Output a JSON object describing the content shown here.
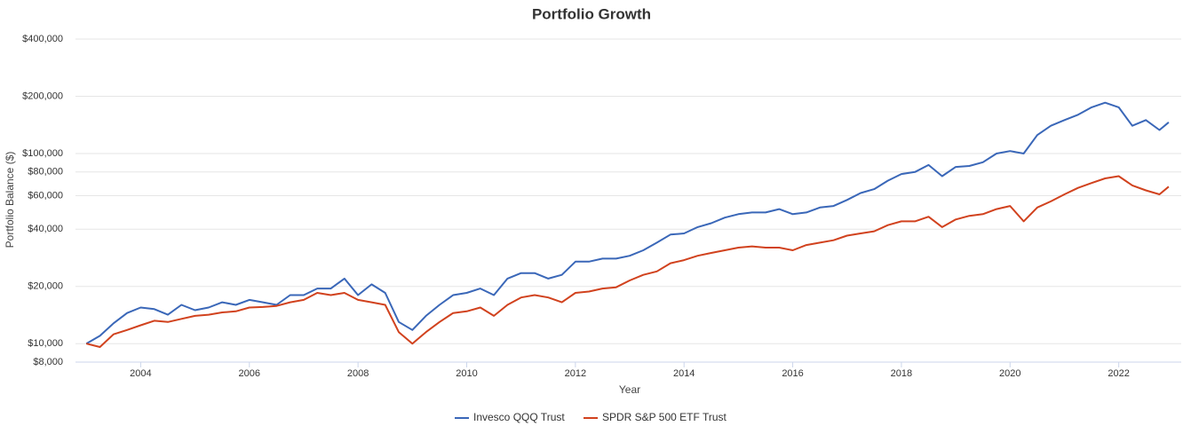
{
  "chart_data": {
    "type": "line",
    "title": "Portfolio Growth",
    "x_label": "Year",
    "y_label": "Portfolio Balance ($)",
    "log_scale": true,
    "grid": true,
    "legend": "bottom",
    "xlim": [
      2002.8,
      2023.15
    ],
    "xticks": [
      2004,
      2006,
      2008,
      2010,
      2012,
      2014,
      2016,
      2018,
      2020,
      2022
    ],
    "ylim": [
      8000,
      400000
    ],
    "yticks": [
      {
        "value": 8000,
        "label": "$8,000"
      },
      {
        "value": 10000,
        "label": "$10,000"
      },
      {
        "value": 20000,
        "label": "$20,000"
      },
      {
        "value": 40000,
        "label": "$40,000"
      },
      {
        "value": 60000,
        "label": "$60,000"
      },
      {
        "value": 80000,
        "label": "$80,000"
      },
      {
        "value": 100000,
        "label": "$100,000"
      },
      {
        "value": 200000,
        "label": "$200,000"
      },
      {
        "value": 400000,
        "label": "$400,000"
      }
    ],
    "x": [
      2003.0,
      2003.25,
      2003.5,
      2003.75,
      2004.0,
      2004.25,
      2004.5,
      2004.75,
      2005.0,
      2005.25,
      2005.5,
      2005.75,
      2006.0,
      2006.25,
      2006.5,
      2006.75,
      2007.0,
      2007.25,
      2007.5,
      2007.75,
      2008.0,
      2008.25,
      2008.5,
      2008.75,
      2009.0,
      2009.25,
      2009.5,
      2009.75,
      2010.0,
      2010.25,
      2010.5,
      2010.75,
      2011.0,
      2011.25,
      2011.5,
      2011.75,
      2012.0,
      2012.25,
      2012.5,
      2012.75,
      2013.0,
      2013.25,
      2013.5,
      2013.75,
      2014.0,
      2014.25,
      2014.5,
      2014.75,
      2015.0,
      2015.25,
      2015.5,
      2015.75,
      2016.0,
      2016.25,
      2016.5,
      2016.75,
      2017.0,
      2017.25,
      2017.5,
      2017.75,
      2018.0,
      2018.25,
      2018.5,
      2018.75,
      2019.0,
      2019.25,
      2019.5,
      2019.75,
      2020.0,
      2020.25,
      2020.5,
      2020.75,
      2021.0,
      2021.25,
      2021.5,
      2021.75,
      2022.0,
      2022.25,
      2022.5,
      2022.75,
      2022.92
    ],
    "series": [
      {
        "name": "Invesco QQQ Trust",
        "color": "#3a67b8",
        "values": [
          10000,
          11000,
          12800,
          14500,
          15500,
          15200,
          14200,
          16000,
          15000,
          15500,
          16500,
          16000,
          17000,
          16500,
          16000,
          18000,
          18000,
          19500,
          19500,
          22000,
          18000,
          20500,
          18500,
          13000,
          11800,
          14000,
          16000,
          18000,
          18500,
          19500,
          18000,
          22000,
          23500,
          23500,
          22000,
          23000,
          27000,
          27000,
          28000,
          28000,
          29000,
          31000,
          34000,
          37500,
          38000,
          41000,
          43000,
          46000,
          48000,
          49000,
          49000,
          51000,
          48000,
          49000,
          52000,
          53000,
          57000,
          62000,
          65000,
          72000,
          78000,
          80000,
          87000,
          76000,
          85000,
          86000,
          90000,
          100000,
          103000,
          100000,
          125000,
          140000,
          150000,
          160000,
          175000,
          185000,
          175000,
          140000,
          150000,
          133000,
          146000
        ]
      },
      {
        "name": "SPDR S&P 500 ETF Trust",
        "color": "#d1421e",
        "values": [
          10000,
          9600,
          11200,
          11800,
          12500,
          13200,
          13000,
          13500,
          14000,
          14200,
          14600,
          14800,
          15500,
          15600,
          15800,
          16500,
          17000,
          18500,
          18000,
          18500,
          17000,
          16500,
          16000,
          11500,
          10000,
          11500,
          13000,
          14500,
          14800,
          15500,
          14000,
          16000,
          17500,
          18000,
          17500,
          16500,
          18500,
          18800,
          19500,
          19800,
          21500,
          23000,
          24000,
          26500,
          27500,
          29000,
          30000,
          31000,
          32000,
          32500,
          32000,
          32000,
          31000,
          33000,
          34000,
          35000,
          37000,
          38000,
          39000,
          42000,
          44000,
          44000,
          46500,
          41000,
          45000,
          47000,
          48000,
          51000,
          53000,
          44000,
          52000,
          56000,
          61000,
          66000,
          70000,
          74000,
          76000,
          68000,
          64000,
          61000,
          67000
        ]
      }
    ]
  }
}
